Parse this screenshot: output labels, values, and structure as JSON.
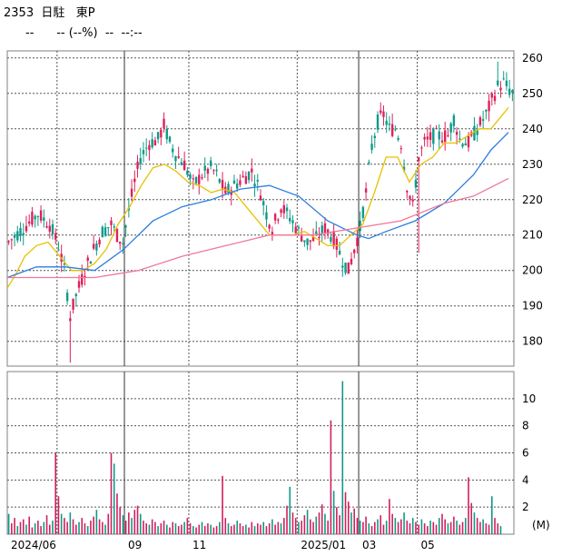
{
  "header": {
    "code": "2353",
    "name": "日駐",
    "market": "東P",
    "price": "--",
    "change": "-- (--%)",
    "volume": "--",
    "time": "--:--"
  },
  "chart_data": [
    {
      "type": "candlestick",
      "title": "",
      "y_ticks": [
        180,
        190,
        200,
        210,
        220,
        230,
        240,
        250,
        260
      ],
      "ylim": [
        173,
        262
      ],
      "x_ticks": [
        "2024/06",
        "09",
        "11",
        "2025/01",
        "03",
        "05"
      ],
      "grid": true,
      "series": [
        {
          "name": "",
          "color": "#e8c000",
          "points": [
            [
              0,
              195
            ],
            [
              3,
              199
            ],
            [
              6,
              204
            ],
            [
              10,
              207
            ],
            [
              14,
              208
            ],
            [
              18,
              204
            ],
            [
              22,
              200
            ],
            [
              26,
              200
            ],
            [
              30,
              202
            ],
            [
              34,
              206
            ],
            [
              38,
              213
            ],
            [
              42,
              218
            ],
            [
              46,
              224
            ],
            [
              50,
              229
            ],
            [
              54,
              230
            ],
            [
              58,
              228
            ],
            [
              62,
              225
            ],
            [
              66,
              224
            ],
            [
              70,
              222
            ],
            [
              74,
              223
            ],
            [
              78,
              222
            ],
            [
              82,
              218
            ],
            [
              86,
              214
            ],
            [
              90,
              210
            ],
            [
              94,
              210
            ],
            [
              98,
              210
            ],
            [
              102,
              211
            ],
            [
              106,
              209
            ],
            [
              110,
              207
            ],
            [
              114,
              207
            ],
            [
              118,
              210
            ],
            [
              122,
              213
            ],
            [
              126,
              222
            ],
            [
              130,
              232
            ],
            [
              134,
              232
            ],
            [
              138,
              225
            ],
            [
              142,
              230
            ],
            [
              146,
              232
            ],
            [
              150,
              236
            ],
            [
              154,
              236
            ],
            [
              158,
              238
            ],
            [
              162,
              240
            ],
            [
              166,
              240
            ],
            [
              170,
              244
            ],
            [
              172,
              246
            ]
          ]
        },
        {
          "name": "",
          "color": "#2a7de1",
          "points": [
            [
              0,
              198
            ],
            [
              10,
              201
            ],
            [
              20,
              201
            ],
            [
              30,
              200
            ],
            [
              40,
              206
            ],
            [
              50,
              214
            ],
            [
              60,
              218
            ],
            [
              70,
              220
            ],
            [
              80,
              223
            ],
            [
              90,
              224
            ],
            [
              100,
              221
            ],
            [
              110,
              214
            ],
            [
              120,
              210
            ],
            [
              124,
              209
            ],
            [
              130,
              211
            ],
            [
              140,
              214
            ],
            [
              150,
              219
            ],
            [
              160,
              227
            ],
            [
              166,
              234
            ],
            [
              172,
              239
            ]
          ]
        },
        {
          "name": "",
          "color": "#f07898",
          "points": [
            [
              0,
              198
            ],
            [
              20,
              198
            ],
            [
              30,
              198
            ],
            [
              45,
              200
            ],
            [
              60,
              204
            ],
            [
              75,
              207
            ],
            [
              90,
              210
            ],
            [
              105,
              210
            ],
            [
              120,
              212
            ],
            [
              135,
              214
            ],
            [
              150,
              219
            ],
            [
              160,
              221
            ],
            [
              172,
              226
            ]
          ]
        }
      ]
    },
    {
      "type": "bar",
      "title": "",
      "y_ticks": [
        2,
        4,
        6,
        8,
        10
      ],
      "ylim": [
        0,
        12
      ],
      "unit": "(M)",
      "values": [
        1.5,
        0.8,
        1.2,
        0.6,
        0.9,
        1.1,
        0.7,
        1.3,
        0.5,
        0.8,
        1.0,
        0.6,
        0.9,
        1.4,
        0.7,
        1.0,
        6.0,
        2.8,
        1.5,
        1.2,
        0.9,
        1.6,
        1.1,
        0.7,
        0.9,
        1.2,
        0.8,
        0.6,
        1.0,
        1.3,
        1.8,
        1.1,
        0.9,
        0.7,
        1.5,
        6.0,
        5.2,
        3.0,
        2.0,
        1.4,
        1.0,
        1.6,
        1.2,
        1.8,
        2.1,
        1.5,
        1.0,
        0.8,
        0.7,
        1.1,
        0.9,
        0.6,
        0.8,
        1.0,
        0.7,
        0.5,
        0.9,
        0.8,
        0.6,
        0.7,
        0.9,
        1.2,
        0.8,
        0.6,
        0.5,
        0.7,
        0.9,
        0.6,
        0.8,
        0.7,
        0.5,
        0.6,
        0.9,
        4.3,
        1.2,
        0.8,
        0.6,
        0.7,
        1.0,
        0.8,
        0.6,
        0.7,
        0.5,
        0.9,
        0.6,
        0.8,
        0.7,
        0.9,
        0.6,
        0.8,
        1.1,
        0.7,
        0.9,
        0.8,
        1.2,
        2.1,
        3.5,
        1.6,
        1.2,
        0.9,
        1.0,
        1.4,
        1.8,
        1.1,
        0.9,
        1.3,
        1.6,
        2.2,
        1.5,
        1.0,
        8.4,
        3.2,
        2.0,
        1.4,
        11.3,
        3.1,
        2.4,
        1.6,
        1.9,
        1.2,
        1.0,
        0.9,
        1.3,
        0.8,
        0.6,
        0.9,
        1.1,
        1.4,
        0.7,
        1.0,
        2.6,
        1.5,
        1.2,
        0.9,
        1.1,
        1.6,
        1.0,
        0.8,
        1.2,
        0.9,
        0.7,
        1.1,
        0.8,
        0.6,
        1.0,
        0.9,
        0.7,
        1.2,
        1.5,
        1.1,
        0.8,
        0.9,
        1.3,
        1.0,
        0.7,
        0.9,
        1.2,
        4.2,
        2.3,
        1.6,
        1.2,
        0.9,
        1.1,
        0.8,
        0.7,
        2.8,
        1.2,
        0.8,
        0.6
      ]
    }
  ]
}
